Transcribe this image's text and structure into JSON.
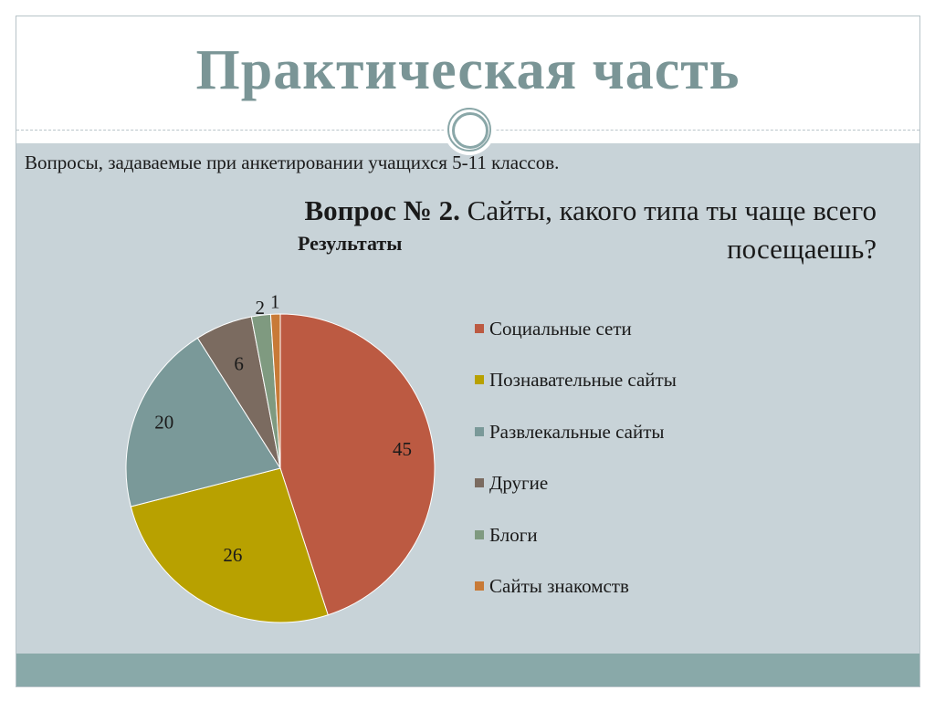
{
  "slide": {
    "title": "Практическая часть",
    "subtitle": "Вопросы, задаваемые при анкетировании учащихся  5-11 классов.",
    "question_bold": "Вопрос № 2.",
    "question_text": " Сайты, какого типа ты чаще всего посещаешь?"
  },
  "colors": {
    "title": "#7a9596",
    "content_bg": "#c8d3d8",
    "footer_bar": "#89a9a9"
  },
  "chart_data": {
    "type": "pie",
    "title": "Результаты",
    "categories": [
      "Социальные сети",
      "Познавательные сайты",
      "Развлекальные сайты",
      "Другие",
      "Блоги",
      "Сайты знакомств"
    ],
    "values": [
      45,
      26,
      20,
      6,
      2,
      1
    ],
    "colors": [
      "#bc5a42",
      "#b8a100",
      "#7a9999",
      "#7b6b60",
      "#7f9a80",
      "#c87a37"
    ],
    "legend_position": "right",
    "show_data_labels": true
  }
}
